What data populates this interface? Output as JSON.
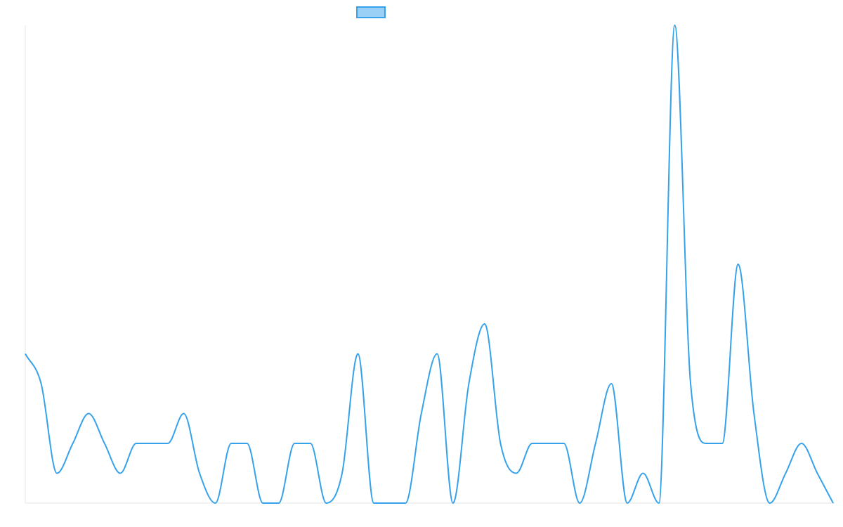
{
  "chart_data": {
    "type": "line",
    "title": "",
    "xlabel": "",
    "ylabel": "",
    "legend": {
      "position": "top-center",
      "entries": [
        {
          "label": ""
        }
      ]
    },
    "grid": false,
    "ylim": [
      0,
      16
    ],
    "x": [
      0,
      1,
      2,
      3,
      4,
      5,
      6,
      7,
      8,
      9,
      10,
      11,
      12,
      13,
      14,
      15,
      16,
      17,
      18,
      19,
      20,
      21,
      22,
      23,
      24,
      25,
      26,
      27,
      28,
      29,
      30,
      31,
      32,
      33,
      34,
      35,
      36,
      37,
      38,
      39,
      40,
      41,
      42,
      43,
      44,
      45,
      46,
      47,
      48,
      49,
      50,
      51
    ],
    "series": [
      {
        "color": "#36a2eb",
        "fill": "#9ad0f5",
        "values": [
          5,
          4,
          1,
          2,
          3,
          2,
          1,
          2,
          2,
          2,
          3,
          1,
          0,
          2,
          2,
          0,
          0,
          2,
          2,
          0,
          1,
          5,
          0,
          0,
          0,
          3,
          5,
          0,
          4,
          6,
          2,
          1,
          2,
          2,
          2,
          0,
          2,
          4,
          0,
          1,
          0,
          16,
          4,
          2,
          2,
          8,
          3,
          0,
          1,
          2,
          1,
          0
        ]
      }
    ]
  }
}
